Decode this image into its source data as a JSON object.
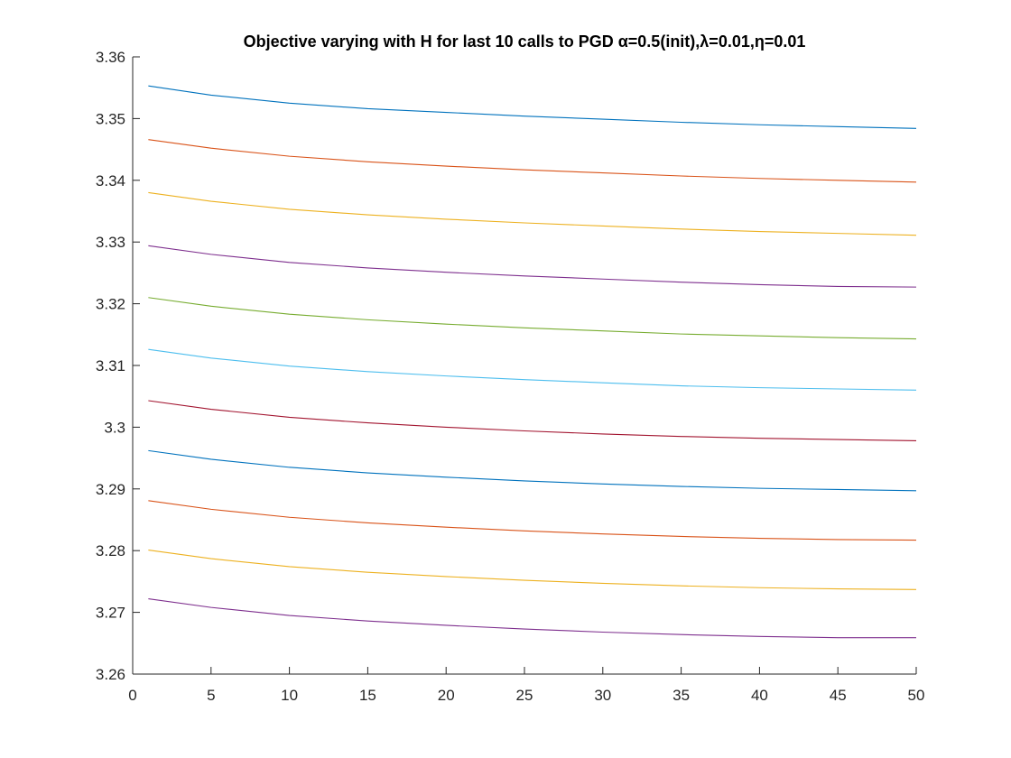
{
  "chart_data": {
    "type": "line",
    "title": "Objective varying with H for last 10 calls to PGD α=0.5(init),λ=0.01,η=0.01",
    "xlabel": "",
    "ylabel": "",
    "xlim": [
      0,
      50
    ],
    "ylim": [
      3.26,
      3.36
    ],
    "xticks": [
      0,
      5,
      10,
      15,
      20,
      25,
      30,
      35,
      40,
      45,
      50
    ],
    "yticks": [
      3.26,
      3.27,
      3.28,
      3.29,
      3.3,
      3.31,
      3.32,
      3.33,
      3.34,
      3.35,
      3.36
    ],
    "xtick_labels": [
      "0",
      "5",
      "10",
      "15",
      "20",
      "25",
      "30",
      "35",
      "40",
      "45",
      "50"
    ],
    "ytick_labels": [
      "3.26",
      "3.27",
      "3.28",
      "3.29",
      "3.3",
      "3.31",
      "3.32",
      "3.33",
      "3.34",
      "3.35",
      "3.36"
    ],
    "grid": false,
    "x": [
      1,
      5,
      10,
      15,
      20,
      25,
      30,
      35,
      40,
      45,
      50
    ],
    "series": [
      {
        "color": "#0072BD",
        "values": [
          3.3553,
          3.3538,
          3.3525,
          3.3516,
          3.351,
          3.3504,
          3.3499,
          3.3494,
          3.349,
          3.3487,
          3.3484
        ]
      },
      {
        "color": "#D95319",
        "values": [
          3.3466,
          3.3452,
          3.3439,
          3.343,
          3.3423,
          3.3417,
          3.3412,
          3.3407,
          3.3403,
          3.34,
          3.3397
        ]
      },
      {
        "color": "#EDB120",
        "values": [
          3.338,
          3.3366,
          3.3353,
          3.3344,
          3.3337,
          3.3331,
          3.3326,
          3.3321,
          3.3317,
          3.3314,
          3.3311
        ]
      },
      {
        "color": "#7E2F8E",
        "values": [
          3.3294,
          3.328,
          3.3267,
          3.3258,
          3.3251,
          3.3245,
          3.324,
          3.3235,
          3.3231,
          3.3228,
          3.3227
        ]
      },
      {
        "color": "#77AC30",
        "values": [
          3.321,
          3.3196,
          3.3183,
          3.3174,
          3.3167,
          3.3161,
          3.3156,
          3.3151,
          3.3148,
          3.3145,
          3.3143
        ]
      },
      {
        "color": "#4DBEEE",
        "values": [
          3.3126,
          3.3112,
          3.3099,
          3.309,
          3.3083,
          3.3077,
          3.3072,
          3.3067,
          3.3064,
          3.3062,
          3.306
        ]
      },
      {
        "color": "#A2142F",
        "values": [
          3.3043,
          3.3029,
          3.3016,
          3.3007,
          3.3,
          3.2994,
          3.2989,
          3.2985,
          3.2982,
          3.298,
          3.2978
        ]
      },
      {
        "color": "#0072BD",
        "values": [
          3.2962,
          3.2948,
          3.2935,
          3.2926,
          3.2919,
          3.2913,
          3.2908,
          3.2904,
          3.2901,
          3.2899,
          3.2897
        ]
      },
      {
        "color": "#D95319",
        "values": [
          3.2881,
          3.2867,
          3.2854,
          3.2845,
          3.2838,
          3.2832,
          3.2827,
          3.2823,
          3.282,
          3.2818,
          3.2817
        ]
      },
      {
        "color": "#EDB120",
        "values": [
          3.2801,
          3.2787,
          3.2774,
          3.2765,
          3.2758,
          3.2752,
          3.2747,
          3.2743,
          3.274,
          3.2738,
          3.2737
        ]
      },
      {
        "color": "#7E2F8E",
        "values": [
          3.2722,
          3.2708,
          3.2695,
          3.2686,
          3.2679,
          3.2673,
          3.2668,
          3.2664,
          3.2661,
          3.2659,
          3.2659
        ]
      }
    ]
  }
}
